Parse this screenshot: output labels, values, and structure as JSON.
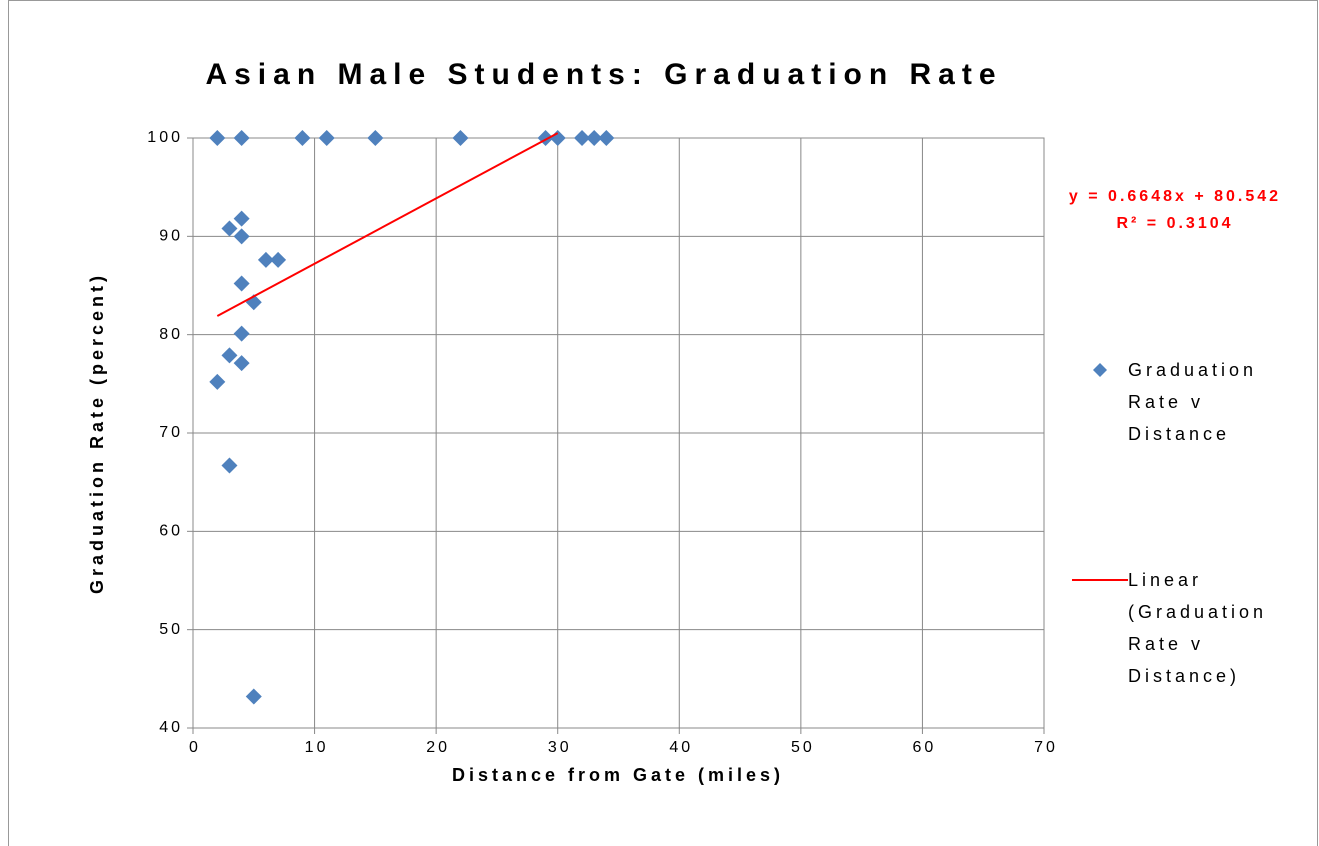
{
  "chart_data": {
    "type": "scatter",
    "title": "Asian Male Students: Graduation Rate",
    "x_label": "Distance from Gate (miles)",
    "y_label": "Graduation Rate (percent)",
    "annotations": [
      "y = 0.6648x + 80.542",
      "R² = 0.3104"
    ],
    "xlim": [
      0,
      70
    ],
    "xticks": [
      0,
      10,
      20,
      30,
      40,
      50,
      60,
      70
    ],
    "ylim": [
      40,
      100
    ],
    "yticks": [
      40,
      50,
      60,
      70,
      80,
      90,
      100
    ],
    "grid": true,
    "legend": "right",
    "series": [
      {
        "name": "Graduation Rate v Distance",
        "color": "#4f81bd",
        "x": [
          2,
          4,
          9,
          11,
          15,
          22,
          29,
          30,
          32,
          33,
          34,
          3,
          4,
          4,
          6,
          7,
          4,
          5,
          4,
          3,
          4,
          2,
          3,
          5
        ],
        "values": [
          100,
          100,
          100,
          100,
          100,
          100,
          100,
          100,
          100,
          100,
          100,
          90.8,
          91.8,
          90,
          87.6,
          87.6,
          85.2,
          83.3,
          80.1,
          77.9,
          77.1,
          75.2,
          66.7,
          43.2
        ]
      },
      {
        "name": "Linear (Graduation Rate v Distance)",
        "color": "#ff0000",
        "x": [
          2,
          30
        ],
        "values": [
          81.9,
          100.5
        ]
      }
    ]
  }
}
